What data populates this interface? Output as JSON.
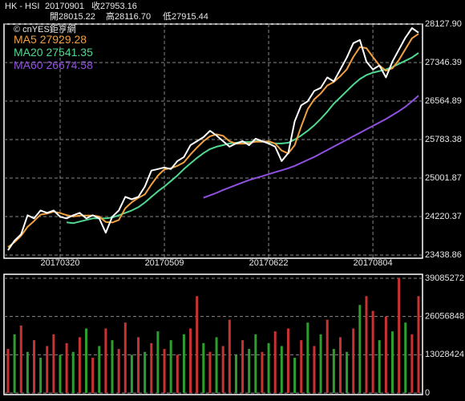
{
  "header": {
    "symbol": "HK - HSI",
    "date": "20170901",
    "close": "收27953.16",
    "open": "開28015.22",
    "high": "高28116.70",
    "low": "低27915.44"
  },
  "chart_data": [
    {
      "type": "line",
      "annotation": "© cnYES鉅亨網",
      "categories": [
        null,
        null,
        null,
        null,
        null,
        null,
        null,
        null,
        "20170320",
        null,
        null,
        null,
        null,
        null,
        null,
        null,
        null,
        null,
        null,
        null,
        null,
        null,
        null,
        null,
        "20170509",
        null,
        null,
        null,
        null,
        null,
        null,
        null,
        null,
        null,
        null,
        null,
        null,
        null,
        null,
        null,
        "20170622",
        null,
        null,
        null,
        null,
        null,
        null,
        null,
        null,
        null,
        null,
        null,
        null,
        null,
        null,
        null,
        "20170804",
        null,
        null,
        null,
        null,
        null,
        null,
        null
      ],
      "ylim": [
        23438.86,
        28127.9
      ],
      "yticks": [
        23438.86,
        24220.37,
        25001.87,
        25783.38,
        26564.89,
        27346.39,
        {
          "value": 28127.9,
          "label": "28127.90"
        }
      ],
      "grid": true,
      "series": [
        {
          "color": "#ffffff",
          "values": [
            23536,
            23730,
            23859,
            24247,
            24183,
            24344,
            24296,
            24344,
            24215,
            24183,
            24247,
            24296,
            24183,
            24247,
            24183,
            23892,
            24215,
            24344,
            24619,
            24571,
            24619,
            24829,
            25153,
            25185,
            25217,
            25185,
            25347,
            25428,
            25670,
            25751,
            25832,
            25961,
            25864,
            25751,
            25638,
            25703,
            25751,
            25670,
            25800,
            25751,
            25703,
            25638,
            25347,
            25509,
            26155,
            26479,
            26560,
            26770,
            26834,
            27045,
            26964,
            27206,
            27449,
            27740,
            27804,
            27368,
            27206,
            27287,
            27045,
            27368,
            27610,
            27853,
            28047,
            27953.16
          ]
        },
        {
          "name": "MA5",
          "color": "#f0a040",
          "values": [
            23600,
            23700,
            23830,
            24010,
            24130,
            24260,
            24280,
            24320,
            24290,
            24250,
            24220,
            24240,
            24240,
            24240,
            24220,
            24110,
            24100,
            24150,
            24390,
            24510,
            24600,
            24670,
            24870,
            25050,
            25180,
            25200,
            25250,
            25320,
            25480,
            25620,
            25750,
            25850,
            25890,
            25860,
            25750,
            25700,
            25700,
            25710,
            25740,
            25740,
            25750,
            25700,
            25560,
            25500,
            25670,
            26050,
            26400,
            26600,
            26720,
            26880,
            26950,
            27070,
            27210,
            27460,
            27660,
            27640,
            27460,
            27290,
            27180,
            27230,
            27400,
            27620,
            27840,
            27929.28
          ]
        },
        {
          "name": "MA20",
          "color": "#50d890",
          "values": [
            null,
            null,
            null,
            null,
            null,
            null,
            null,
            null,
            null,
            24102,
            24085,
            24118,
            24150,
            24183,
            24183,
            24183,
            24199,
            24247,
            24296,
            24344,
            24409,
            24506,
            24619,
            24732,
            24829,
            24942,
            25055,
            25185,
            25298,
            25411,
            25508,
            25589,
            25638,
            25670,
            25703,
            25719,
            25735,
            25735,
            25751,
            25751,
            25735,
            25703,
            25703,
            25719,
            25783,
            25864,
            25961,
            26074,
            26204,
            26349,
            26511,
            26640,
            26770,
            26899,
            27012,
            27093,
            27141,
            27174,
            27206,
            27255,
            27320,
            27384,
            27449,
            27541.35
          ]
        },
        {
          "name": "MA60",
          "color": "#9050e0",
          "values": [
            null,
            null,
            null,
            null,
            null,
            null,
            null,
            null,
            null,
            null,
            null,
            null,
            null,
            null,
            null,
            null,
            null,
            null,
            null,
            null,
            null,
            null,
            null,
            null,
            null,
            null,
            null,
            null,
            null,
            null,
            24603,
            24650,
            24700,
            24760,
            24810,
            24860,
            24910,
            24960,
            25000,
            25040,
            25080,
            25120,
            25160,
            25200,
            25250,
            25310,
            25370,
            25430,
            25500,
            25570,
            25640,
            25710,
            25780,
            25850,
            25920,
            25990,
            26060,
            26130,
            26200,
            26280,
            26360,
            26450,
            26560,
            26674.58
          ]
        }
      ]
    },
    {
      "type": "bar",
      "ylim": [
        0,
        39085272
      ],
      "yticks": [
        0,
        13028424,
        26056848,
        39085272
      ],
      "grid": true,
      "values": [
        15000000,
        20000000,
        23000000,
        14000000,
        18000000,
        12000000,
        16000000,
        20000000,
        13000000,
        17000000,
        14000000,
        19000000,
        22000000,
        12000000,
        16000000,
        22000000,
        18000000,
        15000000,
        24000000,
        13000000,
        19000000,
        14000000,
        17000000,
        21000000,
        15000000,
        18000000,
        13000000,
        20000000,
        22000000,
        33000000,
        17000000,
        14000000,
        19000000,
        16000000,
        25000000,
        13000000,
        18000000,
        15000000,
        20000000,
        14000000,
        17000000,
        21000000,
        16000000,
        22000000,
        12000000,
        18000000,
        24000000,
        16000000,
        20000000,
        25000000,
        15000000,
        19000000,
        14000000,
        22000000,
        30000000,
        33000000,
        28000000,
        18000000,
        26000000,
        21000000,
        39085272,
        24000000,
        20000000,
        33000000
      ],
      "colors": [
        "#c83232",
        "#2e9e2e",
        "#c83232",
        "#2e9e2e",
        "#c83232",
        "#2e9e2e",
        "#c83232",
        "#c83232",
        "#2e9e2e",
        "#c83232",
        "#2e9e2e",
        "#c83232",
        "#2e9e2e",
        "#c83232",
        "#2e9e2e",
        "#c83232",
        "#2e9e2e",
        "#c83232",
        "#c83232",
        "#2e9e2e",
        "#c83232",
        "#2e9e2e",
        "#c83232",
        "#2e9e2e",
        "#c83232",
        "#2e9e2e",
        "#c83232",
        "#2e9e2e",
        "#c83232",
        "#c83232",
        "#2e9e2e",
        "#c83232",
        "#2e9e2e",
        "#c83232",
        "#c83232",
        "#2e9e2e",
        "#c83232",
        "#2e9e2e",
        "#2e9e2e",
        "#c83232",
        "#2e9e2e",
        "#c83232",
        "#2e9e2e",
        "#c83232",
        "#2e9e2e",
        "#c83232",
        "#2e9e2e",
        "#c83232",
        "#2e9e2e",
        "#c83232",
        "#2e9e2e",
        "#c83232",
        "#2e9e2e",
        "#c83232",
        "#2e9e2e",
        "#c83232",
        "#c83232",
        "#2e9e2e",
        "#c83232",
        "#2e9e2e",
        "#c83232",
        "#2e9e2e",
        "#c83232",
        "#c83232"
      ]
    }
  ]
}
